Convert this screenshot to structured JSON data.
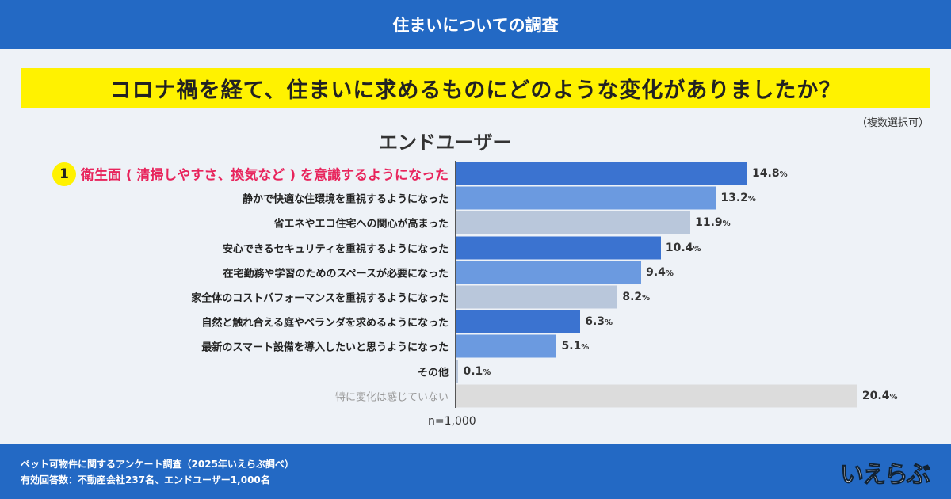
{
  "header": {
    "title": "住まいについての調査"
  },
  "question": "コロナ禍を経て、住まいに求めるものにどのような変化がありましたか？",
  "note": "（複数選択可）",
  "chart_data": {
    "type": "bar",
    "orientation": "horizontal",
    "title": "エンドユーザー",
    "categories": [
      "衛生面 ( 清掃しやすさ、換気など ) を意識するようになった",
      "静かで快適な住環境を重視するようになった",
      "省エネやエコ住宅への関心が高まった",
      "安心できるセキュリティを重視するようになった",
      "在宅勤務や学習のためのスペースが必要になった",
      "家全体のコストパフォーマンスを重視するようになった",
      "自然と触れ合える庭やベランダを求めるようになった",
      "最新のスマート設備を導入したいと思うようになった",
      "その他",
      "特に変化は感じていない"
    ],
    "values": [
      14.8,
      13.2,
      11.9,
      10.4,
      9.4,
      8.2,
      6.3,
      5.1,
      0.1,
      20.4
    ],
    "unit": "%",
    "rank_label": "1",
    "colors": [
      "#3b73d0",
      "#6b9ae0",
      "#b9c7db",
      "#3b73d0",
      "#6b9ae0",
      "#b9c7db",
      "#3b73d0",
      "#6b9ae0",
      "#b9c7db",
      "#dcdcdc"
    ],
    "sample": "n=1,000"
  },
  "footer": {
    "line1": "ペット可物件に関するアンケート調査（2025年いえらぶ調べ）",
    "line2": "有効回答数：不動産会社237名、エンドユーザー1,000名",
    "logo": "いえらぶ"
  }
}
